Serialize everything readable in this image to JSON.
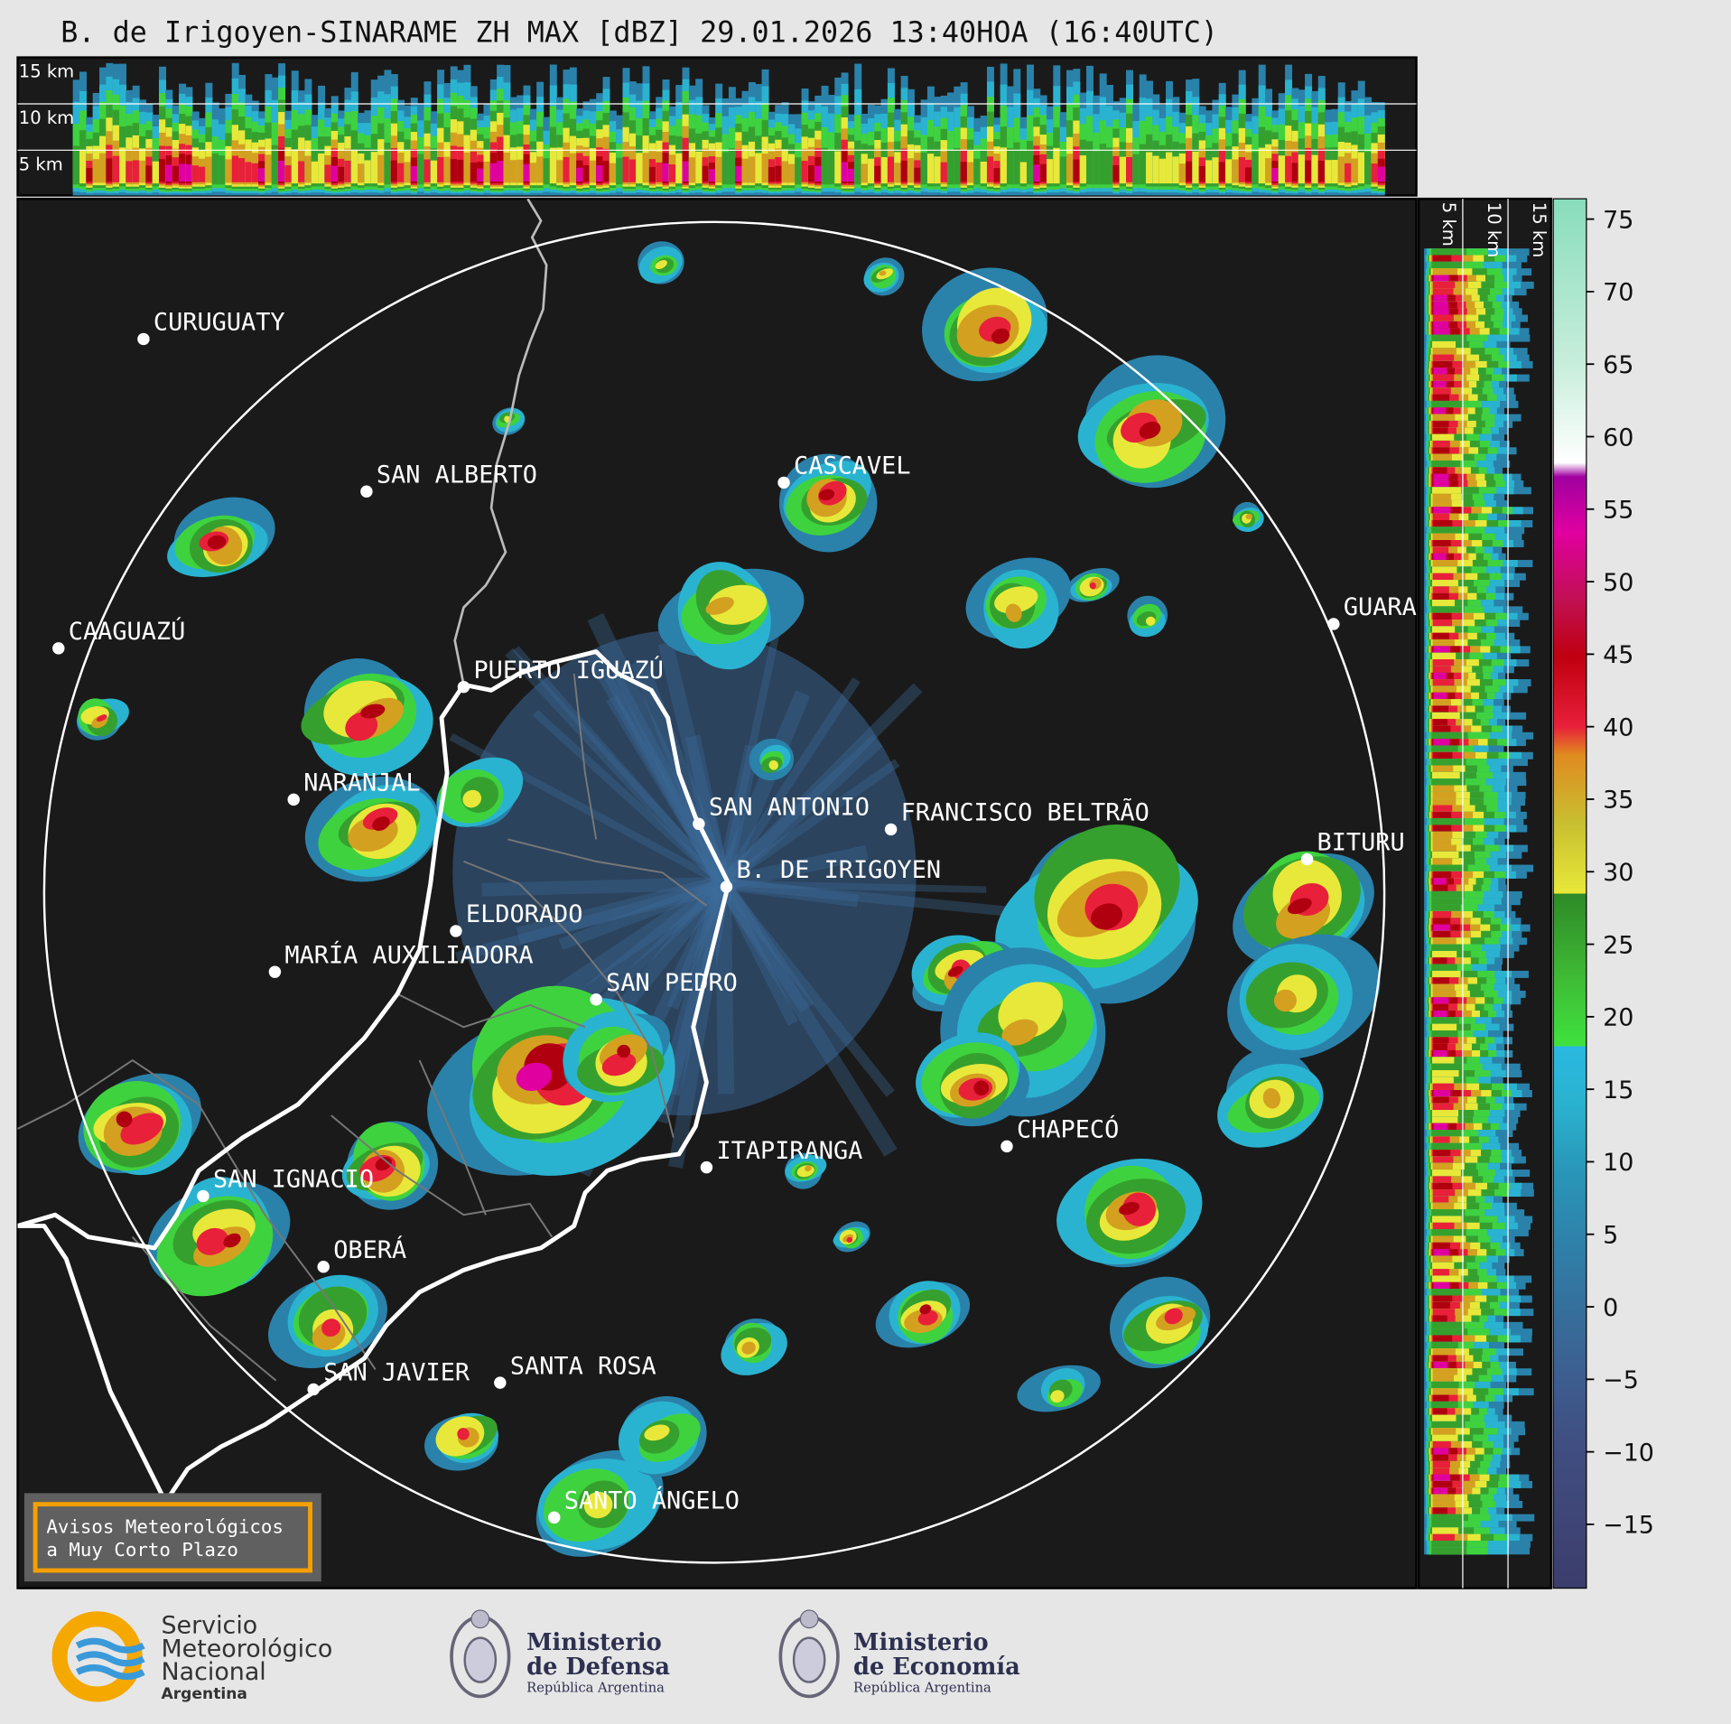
{
  "title": "B. de Irigoyen-SINARAME ZH MAX [dBZ] 29.01.2026 13:40HOA (16:40UTC)",
  "top_section": {
    "labels": [
      "15 km",
      "10 km",
      "5 km"
    ]
  },
  "side_section": {
    "labels": [
      "5 km",
      "10 km",
      "15 km"
    ]
  },
  "cities": [
    {
      "label": "CURUGUATY"
    },
    {
      "label": "SAN ALBERTO"
    },
    {
      "label": "CAAGUAZÚ"
    },
    {
      "label": "CASCAVEL"
    },
    {
      "label": "GUARA"
    },
    {
      "label": "PUERTO IGUAZÚ"
    },
    {
      "label": "NARANJAL"
    },
    {
      "label": "SAN ANTONIO"
    },
    {
      "label": "FRANCISCO BELTRÃO"
    },
    {
      "label": "B. DE IRIGOYEN"
    },
    {
      "label": "BITURU"
    },
    {
      "label": "ELDORADO"
    },
    {
      "label": "MARÍA AUXILIADORA"
    },
    {
      "label": "SAN PEDRO"
    },
    {
      "label": "ITAPIRANGA"
    },
    {
      "label": "CHAPECÓ"
    },
    {
      "label": "SAN IGNACIO"
    },
    {
      "label": "OBERÁ"
    },
    {
      "label": "SAN JAVIER"
    },
    {
      "label": "SANTA ROSA"
    },
    {
      "label": "SANTO ÁNGELO"
    }
  ],
  "colorbar": {
    "lim": [
      -19.4,
      76.4
    ],
    "ticks": [
      75,
      70,
      65,
      60,
      55,
      50,
      45,
      40,
      35,
      30,
      25,
      20,
      15,
      10,
      5,
      0,
      {
        "value": -5,
        "label": "−5"
      },
      {
        "value": -10,
        "label": "−10"
      },
      {
        "value": -15,
        "label": "−15"
      }
    ]
  },
  "warning": {
    "lines": [
      "Avisos Meteorológicos",
      "a Muy Corto Plazo"
    ]
  },
  "logos": [
    {
      "lines": [
        "Servicio",
        "Meteorológico",
        "Nacional",
        "Argentina"
      ]
    },
    {
      "lines": [
        "Ministerio",
        "de Defensa",
        "República Argentina"
      ]
    },
    {
      "lines": [
        "Ministerio",
        "de Economía",
        "República Argentina"
      ]
    }
  ]
}
